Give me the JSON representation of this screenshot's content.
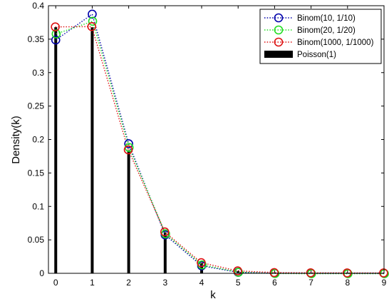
{
  "chart_data": {
    "type": "line",
    "title": "",
    "xlabel": "k",
    "ylabel": "Density(k)",
    "xlim": [
      -0.2,
      9
    ],
    "ylim": [
      0,
      0.4
    ],
    "xticks": [
      0,
      1,
      2,
      3,
      4,
      5,
      6,
      7,
      8,
      9
    ],
    "yticks": [
      0,
      0.05,
      0.1,
      0.15,
      0.2,
      0.25,
      0.3,
      0.35,
      0.4
    ],
    "grid": false,
    "legend_position": "top-right",
    "x": [
      0,
      1,
      2,
      3,
      4,
      5,
      6,
      7,
      8,
      9
    ],
    "series": [
      {
        "name": "Binom(10, 1/10)",
        "style": "dotted-line-circle-markers",
        "color": "#0000aa",
        "values": [
          0.3487,
          0.3874,
          0.1937,
          0.0574,
          0.0112,
          0.0015,
          0.0001,
          0.0,
          0.0,
          0.0
        ]
      },
      {
        "name": "Binom(20, 1/20)",
        "style": "dotted-line-circle-markers",
        "color": "#22dd22",
        "values": [
          0.3585,
          0.3774,
          0.1887,
          0.0596,
          0.0133,
          0.0022,
          0.0003,
          0.0,
          0.0,
          0.0
        ]
      },
      {
        "name": "Binom(1000, 1/1000)",
        "style": "dotted-line-circle-markers",
        "color": "#dd1111",
        "values": [
          0.3677,
          0.3681,
          0.184,
          0.0613,
          0.0153,
          0.003,
          0.0005,
          0.0001,
          0.0,
          0.0
        ]
      },
      {
        "name": "Poisson(1)",
        "style": "stem",
        "color": "#000000",
        "values": [
          0.3679,
          0.3679,
          0.1839,
          0.0613,
          0.0153,
          0.0031,
          0.0005,
          0.0001,
          0.0,
          0.0
        ]
      }
    ]
  }
}
